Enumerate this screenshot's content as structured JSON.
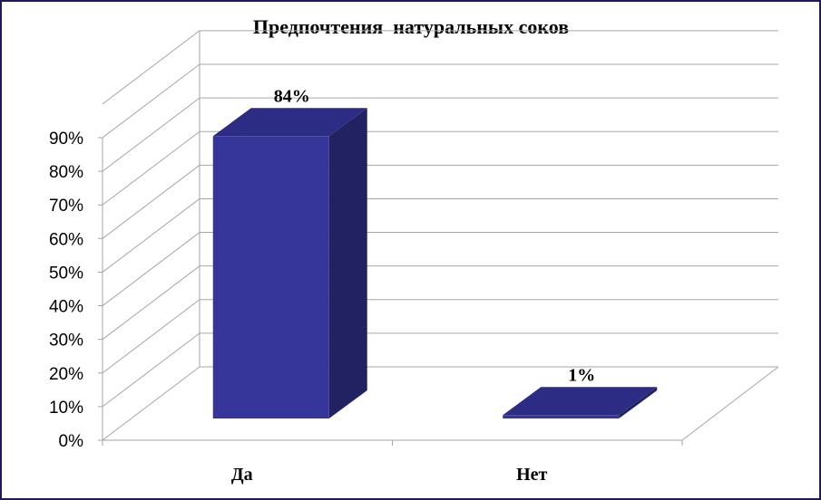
{
  "chart_data": {
    "type": "bar",
    "title": "Предпочтения  натуральных соков",
    "categories": [
      "Да",
      "Нет"
    ],
    "values": [
      84,
      1
    ],
    "data_labels": [
      "84%",
      "1%"
    ],
    "y_ticks": [
      "0%",
      "10%",
      "20%",
      "30%",
      "40%",
      "50%",
      "60%",
      "70%",
      "80%",
      "90%"
    ],
    "ylim": [
      0,
      90
    ],
    "y_unit": "%",
    "grid": true,
    "legend": "none",
    "three_d": true,
    "colors": {
      "bar_front": "#36369a",
      "bar_top": "#2c2c84",
      "bar_side": "#222262",
      "grid": "#a6a6a6",
      "frame": "#1f1a5e"
    }
  }
}
